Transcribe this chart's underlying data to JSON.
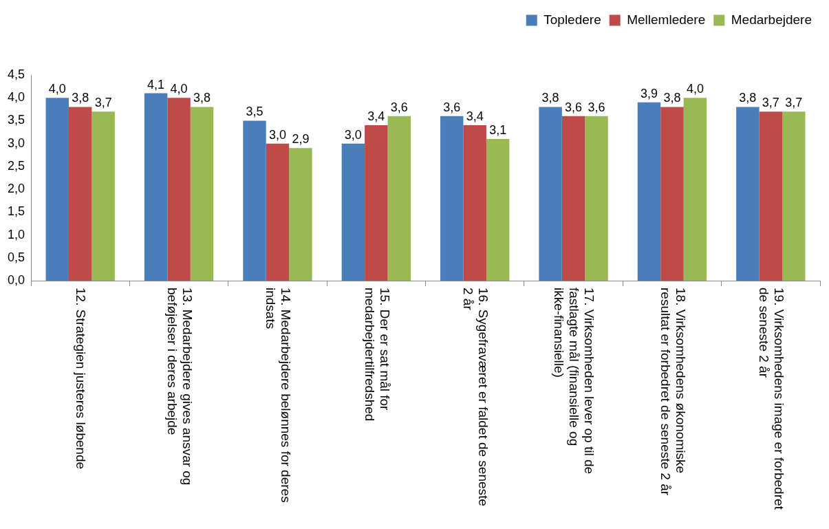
{
  "chart_data": {
    "type": "bar",
    "categories": [
      "12. Strategien justeres løbende",
      "13. Medarbejdere gives ansvar og beføjelser i deres arbejde",
      "14. Medarbejdere belønnes for deres indsats",
      "15. Der er sat mål for medarbejdertilfredshed",
      "16. Sygefraværet er faldet de seneste 2 år",
      "17. Virksomheden lever op til de fastlagte mål (finansielle og ikke-finansielle)",
      "18. Virksomhedens økonomiske resultat er forbedret de seneste 2 år",
      "19. Virksomhedens image er forbedret de seneste 2 år"
    ],
    "series": [
      {
        "name": "Topledere",
        "color": "#4a7ebb",
        "values": [
          4.0,
          4.1,
          3.5,
          3.0,
          3.6,
          3.8,
          3.9,
          3.8
        ],
        "value_labels": [
          "4,0",
          "4,1",
          "3,5",
          "3,0",
          "3,6",
          "3,8",
          "3,9",
          "3,8"
        ]
      },
      {
        "name": "Mellemledere",
        "color": "#be4b48",
        "values": [
          3.8,
          4.0,
          3.0,
          3.4,
          3.4,
          3.6,
          3.8,
          3.7
        ],
        "value_labels": [
          "3,8",
          "4,0",
          "3,0",
          "3,4",
          "3,4",
          "3,6",
          "3,8",
          "3,7"
        ]
      },
      {
        "name": "Medarbejdere",
        "color": "#98b954",
        "values": [
          3.7,
          3.8,
          2.9,
          3.6,
          3.1,
          3.6,
          4.0,
          3.7
        ],
        "value_labels": [
          "3,7",
          "3,8",
          "2,9",
          "3,6",
          "3,1",
          "3,6",
          "4,0",
          "3,7"
        ]
      }
    ],
    "ylim": [
      0,
      4.5
    ],
    "yticks": [
      {
        "value": 0,
        "label": "0,0"
      },
      {
        "value": 0.5,
        "label": "0,5"
      },
      {
        "value": 1,
        "label": "1,0"
      },
      {
        "value": 1.5,
        "label": "1,5"
      },
      {
        "value": 2,
        "label": "2,0"
      },
      {
        "value": 2.5,
        "label": "2,5"
      },
      {
        "value": 3,
        "label": "3,0"
      },
      {
        "value": 3.5,
        "label": "3,5"
      },
      {
        "value": 4,
        "label": "4,0"
      },
      {
        "value": 4.5,
        "label": "4,5"
      }
    ],
    "legend": "top right"
  }
}
